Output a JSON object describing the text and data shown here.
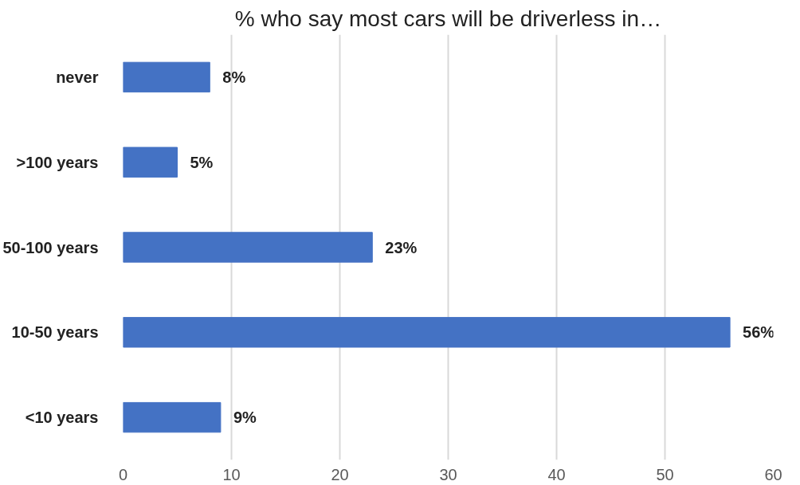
{
  "chart_data": {
    "type": "bar",
    "orientation": "horizontal",
    "title": "% who say most cars will be driverless in…",
    "categories": [
      "never",
      ">100 years",
      "50-100 years",
      "10-50 years",
      "<10 years"
    ],
    "values": [
      8,
      5,
      23,
      56,
      9
    ],
    "value_labels": [
      "8%",
      "5%",
      "23%",
      "56%",
      "9%"
    ],
    "color": "#4472c4",
    "xlim": [
      0,
      60
    ],
    "xticks": [
      0,
      10,
      20,
      30,
      40,
      50,
      60
    ],
    "grid": "x"
  }
}
